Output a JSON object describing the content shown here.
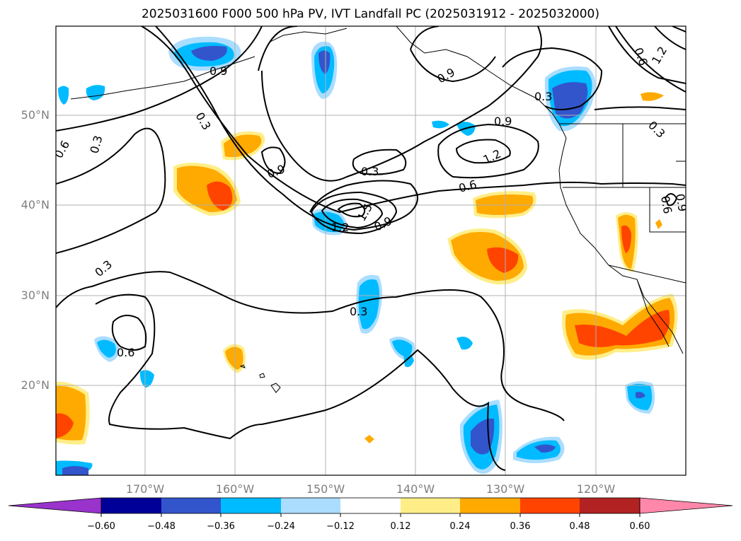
{
  "title": "2025031600 F000 500 hPa PV, IVT Landfall PC (2025031912 - 2025032000)",
  "latitude_labels": [
    "50°N",
    "40°N",
    "30°N",
    "20°N"
  ],
  "longitude_labels": [
    "170°W",
    "160°W",
    "150°W",
    "140°W",
    "130°W",
    "120°W"
  ],
  "colorbar": {
    "ticks": [
      "−0.60",
      "−0.48",
      "−0.36",
      "−0.24",
      "−0.12",
      "0.12",
      "0.24",
      "0.36",
      "0.48",
      "0.60"
    ],
    "colors": [
      "#9933cc",
      "#000099",
      "#3355cc",
      "#00bbff",
      "#aaddff",
      "#ffffff",
      "#ffee88",
      "#ffaa00",
      "#ff4400",
      "#b22222",
      "#ff88aa"
    ]
  },
  "contour_labels": [
    "0.9",
    "0.3",
    "0.6",
    "0.3",
    "0.9",
    "0.3",
    "0.9",
    "1.2",
    "0.6",
    "1.5",
    "1.2",
    "0.9",
    "0.3",
    "0.3",
    "0.6",
    "0.3",
    "0.9",
    "0.6",
    "1.2",
    "0.3",
    "0.6",
    "0.9"
  ]
}
